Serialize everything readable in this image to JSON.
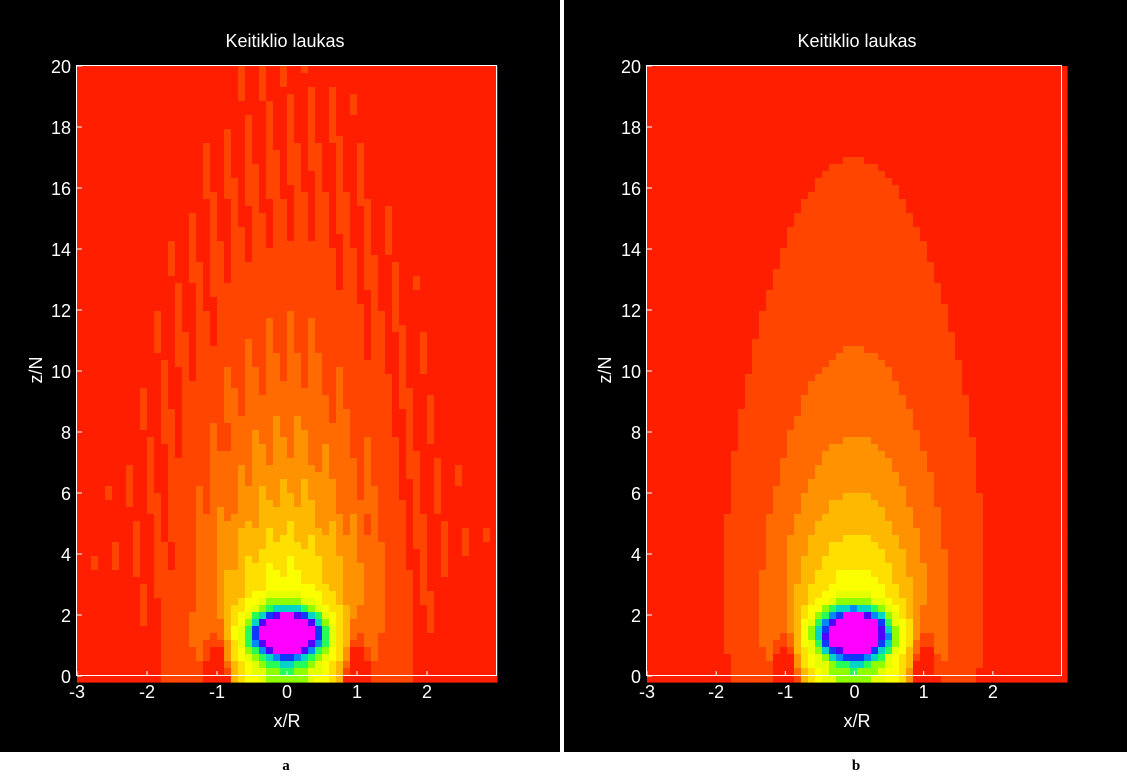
{
  "colors": {
    "background": "#000000",
    "text": "#ffffff",
    "page": "#ffffff",
    "colormap": [
      "#ff00ff",
      "#3200ff",
      "#0050ff",
      "#00b4ff",
      "#00ff7a",
      "#80ff00",
      "#e6ff00",
      "#ffff00",
      "#ffd200",
      "#ffa500",
      "#ff7800",
      "#ff4b00",
      "#ff1e00"
    ]
  },
  "chart_data": [
    {
      "type": "heatmap",
      "panel_label": "a",
      "title": "Keitiklio laukas",
      "xlabel": "x/R",
      "ylabel": "z/N",
      "xlim": [
        -3,
        3
      ],
      "ylim": [
        0,
        20
      ],
      "xticks": [
        -3,
        -2,
        -1,
        0,
        1,
        2
      ],
      "yticks": [
        0,
        2,
        4,
        6,
        8,
        10,
        12,
        14,
        16,
        18,
        20
      ],
      "grid": false,
      "colormap": "hsv",
      "field": {
        "near_field_max_at": [
          0,
          1.4
        ],
        "zero_points": [
          [
            -1,
            0
          ],
          [
            1,
            0
          ]
        ],
        "pattern": "rippled"
      }
    },
    {
      "type": "heatmap",
      "panel_label": "b",
      "title": "Keitiklio laukas",
      "xlabel": "x/R",
      "ylabel": "z/N",
      "xlim": [
        -3,
        3
      ],
      "ylim": [
        0,
        20
      ],
      "xticks": [
        -3,
        -2,
        -1,
        0,
        1,
        2
      ],
      "yticks": [
        0,
        2,
        4,
        6,
        8,
        10,
        12,
        14,
        16,
        18,
        20
      ],
      "grid": false,
      "colormap": "hsv",
      "field": {
        "near_field_max_at": [
          0,
          1.4
        ],
        "zero_points": [
          [
            -1,
            0
          ],
          [
            1,
            0
          ]
        ],
        "pattern": "smooth"
      }
    }
  ]
}
